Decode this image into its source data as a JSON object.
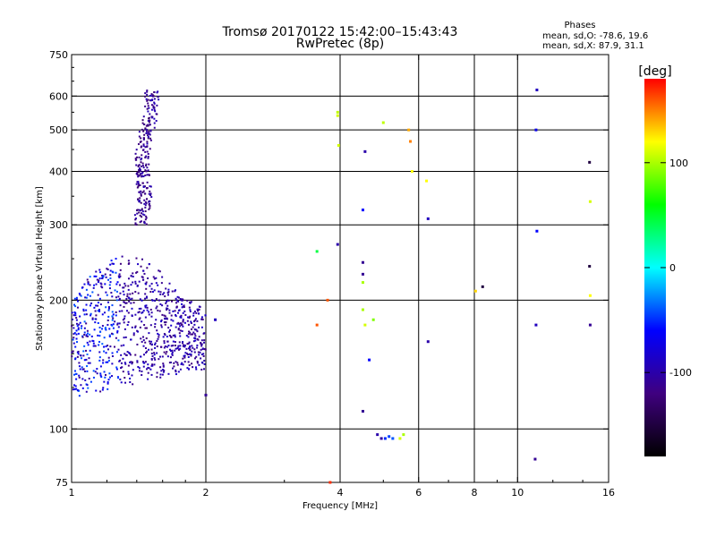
{
  "chart_data": {
    "type": "scatter",
    "title": "Tromsø 20170122 15:42:00–15:43:43",
    "subtitle": "RwPretec (8p)",
    "xlabel": "Frequency [MHz]",
    "ylabel": "Stationary phase Virtual Height [km]",
    "x_scale": "log",
    "y_scale": "log",
    "xlim": [
      1,
      16
    ],
    "ylim": [
      75,
      750
    ],
    "x_ticks": [
      1,
      2,
      4,
      6,
      8,
      10,
      16
    ],
    "y_ticks": [
      75,
      100,
      200,
      300,
      400,
      500,
      600,
      750
    ],
    "x_gridlines": [
      2,
      4,
      6,
      8,
      10
    ],
    "y_gridlines": [
      100,
      200,
      300,
      400,
      500,
      600
    ],
    "grid": true,
    "stats_header": "Phases",
    "stats_line_o": "mean, sd,O: -78.6, 19.6",
    "stats_line_x": "mean, sd,X:  87.9, 31.1",
    "colorbar": {
      "label": "[deg]",
      "ticks": [
        100,
        0,
        -100
      ],
      "range": [
        -180,
        180
      ],
      "colormap": [
        "#000000",
        "#3f007f",
        "#0000ff",
        "#00ffff",
        "#00ff00",
        "#ffff00",
        "#ff0000"
      ],
      "placement": "right"
    },
    "clusters": [
      {
        "name": "",
        "x_range": [
          1.38,
          1.56
        ],
        "y_range": [
          300,
          620
        ],
        "phase_range": [
          -130,
          -90
        ],
        "count": 260
      },
      {
        "name": "",
        "x_range": [
          1.0,
          2.0
        ],
        "y_range": [
          115,
          260
        ],
        "phase_range": [
          -125,
          -15
        ],
        "count": 900
      }
    ],
    "points": [
      {
        "x": 3.95,
        "y": 550,
        "phase": 105
      },
      {
        "x": 3.95,
        "y": 540,
        "phase": 110
      },
      {
        "x": 3.97,
        "y": 460,
        "phase": 110
      },
      {
        "x": 3.95,
        "y": 270,
        "phase": -100
      },
      {
        "x": 3.55,
        "y": 260,
        "phase": 45
      },
      {
        "x": 3.75,
        "y": 200,
        "phase": 160
      },
      {
        "x": 3.55,
        "y": 175,
        "phase": 160
      },
      {
        "x": 3.8,
        "y": 75,
        "phase": 170
      },
      {
        "x": 4.55,
        "y": 445,
        "phase": -100
      },
      {
        "x": 4.5,
        "y": 325,
        "phase": -60
      },
      {
        "x": 4.5,
        "y": 245,
        "phase": -110
      },
      {
        "x": 4.5,
        "y": 230,
        "phase": -110
      },
      {
        "x": 4.5,
        "y": 220,
        "phase": 100
      },
      {
        "x": 4.5,
        "y": 190,
        "phase": 100
      },
      {
        "x": 4.55,
        "y": 175,
        "phase": 110
      },
      {
        "x": 4.75,
        "y": 180,
        "phase": 90
      },
      {
        "x": 4.65,
        "y": 145,
        "phase": -60
      },
      {
        "x": 4.5,
        "y": 110,
        "phase": -110
      },
      {
        "x": 4.85,
        "y": 97,
        "phase": -100
      },
      {
        "x": 4.95,
        "y": 95,
        "phase": -105
      },
      {
        "x": 5.05,
        "y": 95,
        "phase": -50
      },
      {
        "x": 5.15,
        "y": 96,
        "phase": -45
      },
      {
        "x": 5.25,
        "y": 95,
        "phase": -40
      },
      {
        "x": 5.45,
        "y": 95,
        "phase": 110
      },
      {
        "x": 5.55,
        "y": 97,
        "phase": 100
      },
      {
        "x": 5.0,
        "y": 520,
        "phase": 105
      },
      {
        "x": 5.7,
        "y": 500,
        "phase": 140
      },
      {
        "x": 5.75,
        "y": 470,
        "phase": 150
      },
      {
        "x": 5.8,
        "y": 400,
        "phase": 120
      },
      {
        "x": 6.25,
        "y": 380,
        "phase": 120
      },
      {
        "x": 6.3,
        "y": 310,
        "phase": -90
      },
      {
        "x": 6.3,
        "y": 160,
        "phase": -100
      },
      {
        "x": 8.05,
        "y": 210,
        "phase": 130
      },
      {
        "x": 8.35,
        "y": 215,
        "phase": -150
      },
      {
        "x": 11.05,
        "y": 620,
        "phase": -90
      },
      {
        "x": 11.0,
        "y": 500,
        "phase": -70
      },
      {
        "x": 11.05,
        "y": 290,
        "phase": -60
      },
      {
        "x": 11.0,
        "y": 175,
        "phase": -90
      },
      {
        "x": 10.95,
        "y": 85,
        "phase": -110
      },
      {
        "x": 14.5,
        "y": 420,
        "phase": -150
      },
      {
        "x": 14.55,
        "y": 340,
        "phase": 110
      },
      {
        "x": 14.5,
        "y": 240,
        "phase": -150
      },
      {
        "x": 14.55,
        "y": 205,
        "phase": 120
      },
      {
        "x": 14.55,
        "y": 175,
        "phase": -110
      },
      {
        "x": 2.0,
        "y": 120,
        "phase": -110
      },
      {
        "x": 2.1,
        "y": 180,
        "phase": -90
      }
    ]
  }
}
